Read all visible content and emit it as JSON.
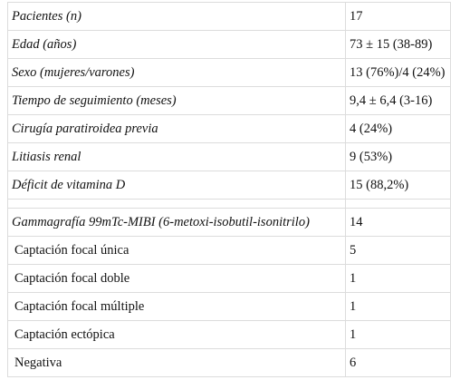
{
  "sections": [
    {
      "rows": [
        [
          "Pacientes (n)",
          "17"
        ],
        [
          "Edad (años)",
          "73 ± 15 (38-89)"
        ],
        [
          "Sexo (mujeres/varones)",
          "13 (76%)/4 (24%)"
        ],
        [
          "Tiempo de seguimiento (meses)",
          "9,4 ± 6,4 (3-16)"
        ],
        [
          "Cirugía paratiroidea previa",
          "4 (24%)"
        ],
        [
          "Litiasis renal",
          "9 (53%)"
        ],
        [
          "Déficit de vitamina D",
          "15 (88,2%)"
        ]
      ]
    },
    {
      "rows": [
        [
          "Gammagrafía 99mTc-MIBI (6-metoxi-isobutil-isonitrilo)",
          "14"
        ],
        [
          "Captación focal única",
          "5"
        ],
        [
          "Captación focal doble",
          "1"
        ],
        [
          "Captación focal múltiple",
          "1"
        ],
        [
          "Captación ectópica",
          "1"
        ],
        [
          "Negativa",
          "6"
        ]
      ]
    }
  ]
}
